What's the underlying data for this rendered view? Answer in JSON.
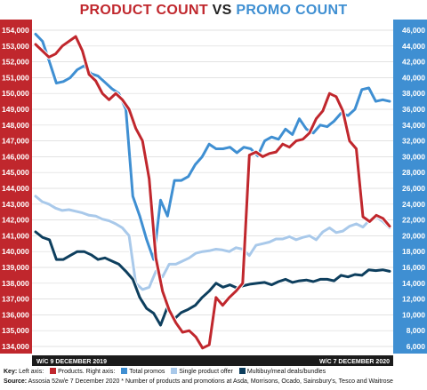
{
  "title": {
    "part1": "PRODUCT COUNT",
    "part2": "VS",
    "part3": "PROMO COUNT"
  },
  "chart_data": {
    "type": "line",
    "left_axis": {
      "min": 134000,
      "max": 154000,
      "step": 1000,
      "tick_labels": [
        "134,000",
        "135,000",
        "136,000",
        "137,000",
        "138,000",
        "139,000",
        "140,000",
        "141,000",
        "142,000",
        "143,000",
        "144,000",
        "145,000",
        "146,000",
        "147,000",
        "148,000",
        "149,000",
        "150,000",
        "151,000",
        "152,000",
        "153,000",
        "154,000"
      ]
    },
    "right_axis": {
      "min": 6000,
      "max": 46000,
      "step": 2000,
      "tick_labels": [
        "6,000",
        "8,000",
        "10,000",
        "12,000",
        "14,000",
        "16,000",
        "18,000",
        "20,000",
        "22,000",
        "24,000",
        "26,000",
        "28,000",
        "30,000",
        "32,000",
        "34,000",
        "36,000",
        "38,000",
        "40,000",
        "42,000",
        "44,000",
        "46,000"
      ]
    },
    "x_start_label": "W/C 9 DECEMBER 2019",
    "x_end_label": "W/C 7 DECEMBER 2020",
    "series": [
      {
        "name": "Products",
        "axis": "left",
        "color": "#c0272d",
        "values": [
          153100,
          152700,
          152300,
          152500,
          153000,
          153300,
          153600,
          152700,
          151200,
          150800,
          150000,
          149600,
          150000,
          149600,
          149000,
          147800,
          147000,
          144600,
          139600,
          137500,
          136300,
          135500,
          134900,
          135000,
          134600,
          133900,
          134100,
          137100,
          136600,
          137100,
          137500,
          138000,
          146100,
          146300,
          146000,
          146200,
          146300,
          146800,
          146600,
          147000,
          147100,
          147500,
          148400,
          148900,
          150000,
          149800,
          148900,
          147000,
          146500,
          142200,
          141900,
          142300,
          142100,
          141600
        ]
      },
      {
        "name": "Total promos",
        "axis": "right",
        "color": "#3f8fd2",
        "values": [
          45500,
          44600,
          42000,
          39300,
          39500,
          40000,
          41000,
          41500,
          40500,
          40200,
          39400,
          38600,
          38000,
          36000,
          25000,
          22500,
          19500,
          17000,
          24500,
          22500,
          27000,
          27000,
          27500,
          29000,
          30000,
          31600,
          31000,
          31000,
          31200,
          30500,
          31200,
          31000,
          30100,
          32000,
          32500,
          32200,
          33500,
          32800,
          34800,
          33500,
          33000,
          34000,
          33800,
          34500,
          35500,
          35200,
          36000,
          38500,
          38700,
          37000,
          37200,
          37000
        ]
      },
      {
        "name": "Single product offer",
        "axis": "right",
        "color": "#a9c9ea",
        "values": [
          25000,
          24300,
          24000,
          23500,
          23200,
          23300,
          23100,
          22900,
          22600,
          22500,
          22100,
          21900,
          21500,
          21000,
          20000,
          14000,
          13200,
          13500,
          15500,
          14800,
          16400,
          16400,
          16800,
          17200,
          17800,
          18000,
          18100,
          18300,
          18200,
          18000,
          18500,
          18300,
          17500,
          18800,
          19000,
          19200,
          19600,
          19600,
          19900,
          19500,
          19800,
          20000,
          19500,
          20500,
          21000,
          20400,
          20600,
          21200,
          21500,
          21100,
          22000,
          22400,
          21800,
          21000
        ]
      },
      {
        "name": "Multibuy/meal deals/bundles",
        "axis": "right",
        "color": "#0e3f5e",
        "values": [
          20500,
          19800,
          19500,
          17000,
          17000,
          17500,
          18000,
          18000,
          17600,
          17000,
          17200,
          16800,
          16400,
          15500,
          14500,
          12200,
          10800,
          10200,
          8700,
          11000,
          9500,
          10300,
          10700,
          11200,
          12200,
          13000,
          14000,
          13500,
          13800,
          13400,
          13700,
          13900,
          14000,
          14100,
          13800,
          14200,
          14500,
          14100,
          14300,
          14400,
          14200,
          14500,
          14500,
          14300,
          15000,
          14800,
          15100,
          15000,
          15700,
          15600,
          15700,
          15500
        ]
      }
    ],
    "grid": true,
    "legend_placement": "bottom"
  },
  "footer": {
    "key_prefix": "Key:",
    "key_left": "Left axis:",
    "key_products": "Products. Right axis:",
    "key_total": "Total promos",
    "key_single": "Single product offer",
    "key_multi": "Multibuy/meal deals/bundles",
    "source_prefix": "Source:",
    "source_text": "Assosia 52w/e 7 December 2020 * Number of products and promotions at Asda, Morrisons, Ocado, Sainsbury's, Tesco and Waitrose"
  }
}
